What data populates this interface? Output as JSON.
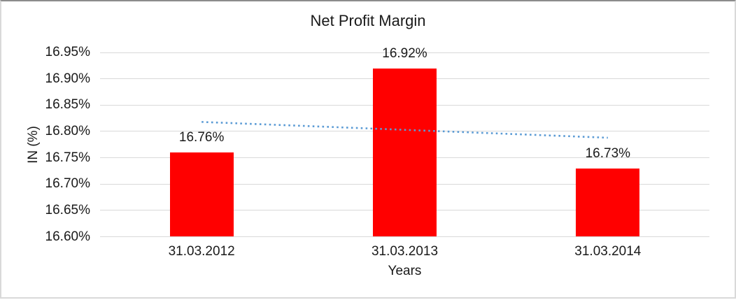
{
  "chart_data": {
    "type": "bar",
    "title": "Net Profit Margin",
    "xlabel": "Years",
    "ylabel": "IN (%)",
    "categories": [
      "31.03.2012",
      "31.03.2013",
      "31.03.2014"
    ],
    "values": [
      16.76,
      16.92,
      16.73
    ],
    "data_labels": [
      "16.76%",
      "16.92%",
      "16.73%"
    ],
    "ylim": [
      16.6,
      16.95
    ],
    "ytick_step": 0.05,
    "ytick_labels": [
      "16.60%",
      "16.65%",
      "16.70%",
      "16.75%",
      "16.80%",
      "16.85%",
      "16.90%",
      "16.95%"
    ],
    "grid": true,
    "legend_position": "none",
    "trendline": {
      "kind": "linear",
      "line_style": "dotted",
      "start_value": 16.818,
      "end_value": 16.788
    },
    "colors": {
      "bar": "#FF0000",
      "trendline": "#5B9BD5",
      "gridline": "#D9D9D9",
      "text": "#1A1A1A",
      "background": "#FFFFFF"
    }
  }
}
